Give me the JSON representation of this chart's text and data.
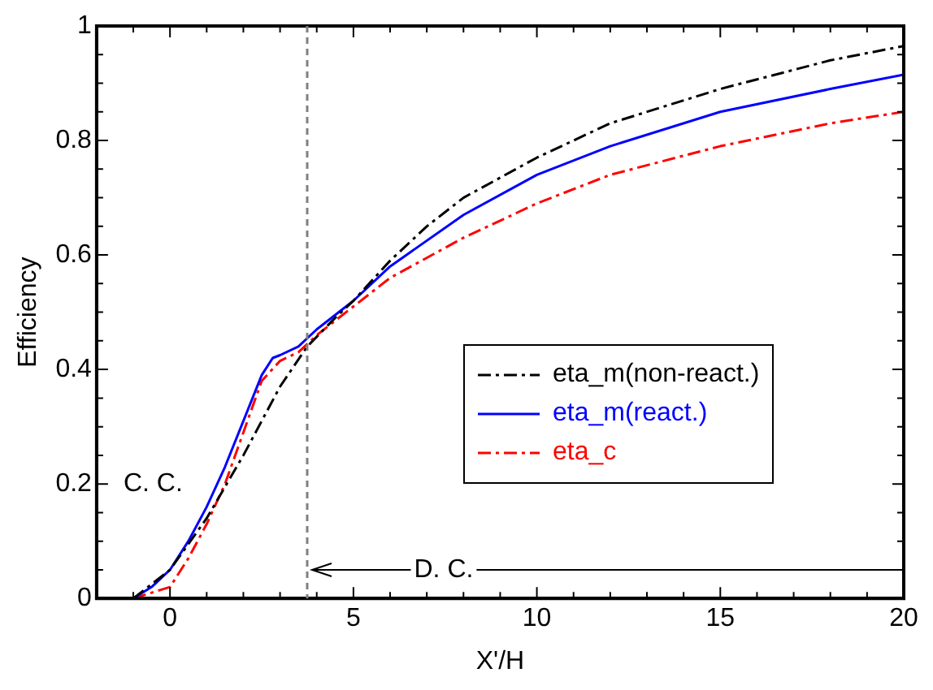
{
  "chart_data": {
    "type": "line",
    "xlabel": "X'/H",
    "ylabel": "Efficiency",
    "xlim": [
      -2,
      20
    ],
    "ylim": [
      0,
      1
    ],
    "xticks": [
      {
        "value": -2,
        "label": null
      },
      {
        "value": -1,
        "label": null
      },
      0,
      {
        "value": 1,
        "label": null
      },
      {
        "value": 2,
        "label": null
      },
      {
        "value": 3,
        "label": null
      },
      {
        "value": 4,
        "label": null
      },
      5,
      {
        "value": 6,
        "label": null
      },
      {
        "value": 7,
        "label": null
      },
      {
        "value": 8,
        "label": null
      },
      {
        "value": 9,
        "label": null
      },
      10,
      {
        "value": 11,
        "label": null
      },
      {
        "value": 12,
        "label": null
      },
      {
        "value": 13,
        "label": null
      },
      {
        "value": 14,
        "label": null
      },
      15,
      {
        "value": 16,
        "label": null
      },
      {
        "value": 17,
        "label": null
      },
      {
        "value": 18,
        "label": null
      },
      {
        "value": 19,
        "label": null
      },
      20
    ],
    "yticks": [
      0,
      {
        "value": 0.05,
        "label": null
      },
      {
        "value": 0.1,
        "label": null
      },
      {
        "value": 0.15,
        "label": null
      },
      0.2,
      {
        "value": 0.25,
        "label": null
      },
      {
        "value": 0.3,
        "label": null
      },
      {
        "value": 0.35,
        "label": null
      },
      0.4,
      {
        "value": 0.45,
        "label": null
      },
      {
        "value": 0.5,
        "label": null
      },
      {
        "value": 0.55,
        "label": null
      },
      0.6,
      {
        "value": 0.65,
        "label": null
      },
      {
        "value": 0.7,
        "label": null
      },
      {
        "value": 0.75,
        "label": null
      },
      0.8,
      {
        "value": 0.85,
        "label": null
      },
      {
        "value": 0.9,
        "label": null
      },
      {
        "value": 0.95,
        "label": null
      },
      1
    ],
    "grid": false,
    "legend": "right",
    "marker": "none",
    "series": [
      {
        "name": "eta_m(non-react.)",
        "color": "#000000",
        "line_style": "dashed",
        "x": [
          -1,
          0,
          1,
          2,
          3,
          3.74,
          4.5,
          5,
          6,
          7,
          8,
          10,
          12,
          15,
          18,
          20
        ],
        "values": [
          0,
          0.05,
          0.14,
          0.25,
          0.37,
          0.44,
          0.49,
          0.52,
          0.59,
          0.65,
          0.7,
          0.77,
          0.83,
          0.89,
          0.94,
          0.965
        ]
      },
      {
        "name": "eta_m(react.)",
        "color": "#0000ff",
        "line_style": "solid",
        "x": [
          -1,
          -0.5,
          0,
          0.5,
          1,
          1.5,
          2,
          2.5,
          2.8,
          3,
          3.5,
          4,
          5,
          6,
          8,
          10,
          12,
          15,
          18,
          20
        ],
        "values": [
          0,
          0.02,
          0.05,
          0.1,
          0.16,
          0.23,
          0.31,
          0.39,
          0.42,
          0.425,
          0.44,
          0.47,
          0.52,
          0.58,
          0.67,
          0.74,
          0.79,
          0.85,
          0.89,
          0.915
        ]
      },
      {
        "name": "eta_c",
        "color": "#ff0000",
        "line_style": "dashed",
        "x": [
          -1,
          -0.5,
          0,
          0.5,
          1,
          1.5,
          2,
          2.5,
          3,
          3.5,
          4,
          5,
          6,
          8,
          10,
          12,
          15,
          18,
          20
        ],
        "values": [
          0,
          0.01,
          0.02,
          0.07,
          0.13,
          0.2,
          0.29,
          0.38,
          0.415,
          0.43,
          0.46,
          0.51,
          0.56,
          0.63,
          0.69,
          0.74,
          0.79,
          0.83,
          0.85
        ]
      }
    ],
    "ref_lines": [
      {
        "axis": "x",
        "value": 3.74,
        "color": "#808080",
        "line_style": "dashed"
      }
    ],
    "annotations": [
      "C. C.",
      "D. C."
    ]
  }
}
